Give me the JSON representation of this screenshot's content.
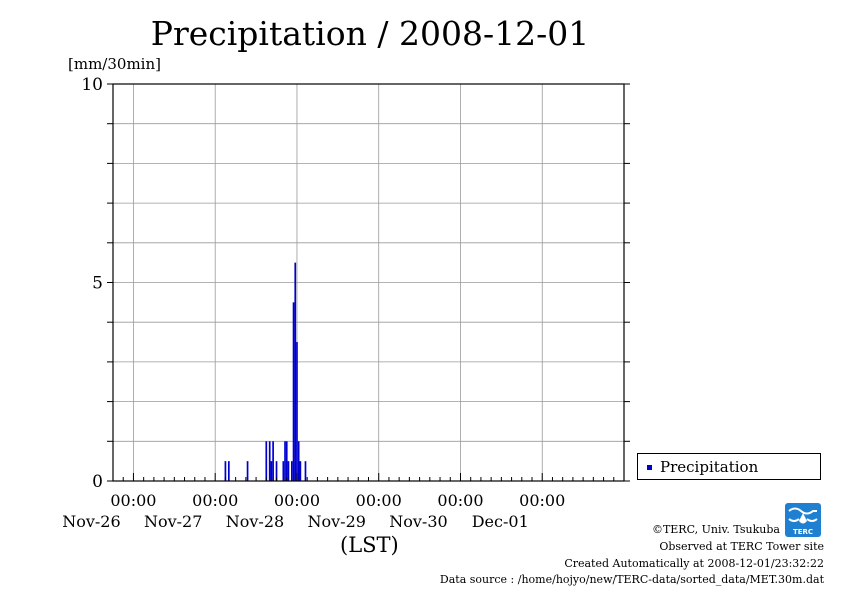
{
  "chart_data": {
    "type": "bar",
    "title": "Precipitation / 2008-12-01",
    "ylabel": "[mm/30min]",
    "xlabel": "(LST)",
    "ylim": [
      0,
      10
    ],
    "yticks": [
      0,
      5,
      10
    ],
    "xlim": [
      "2008-11-25 18:00",
      "2008-12-01 24:00"
    ],
    "xticks": [
      {
        "time": "00:00",
        "date": "Nov-26"
      },
      {
        "time": "00:00",
        "date": "Nov-27"
      },
      {
        "time": "00:00",
        "date": "Nov-28"
      },
      {
        "time": "00:00",
        "date": "Nov-29"
      },
      {
        "time": "00:00",
        "date": "Nov-30"
      },
      {
        "time": "00:00",
        "date": "Dec-01"
      }
    ],
    "grid": true,
    "legend": "bottom-right",
    "series": [
      {
        "name": "Precipitation",
        "color": "#0000cc",
        "points": [
          {
            "x": "2008-11-27 03:00",
            "y": 0.5
          },
          {
            "x": "2008-11-27 04:00",
            "y": 0.5
          },
          {
            "x": "2008-11-27 09:30",
            "y": 0.5
          },
          {
            "x": "2008-11-27 15:00",
            "y": 1.0
          },
          {
            "x": "2008-11-27 16:00",
            "y": 1.0
          },
          {
            "x": "2008-11-27 16:30",
            "y": 0.5
          },
          {
            "x": "2008-11-27 17:00",
            "y": 1.0
          },
          {
            "x": "2008-11-27 18:00",
            "y": 0.5
          },
          {
            "x": "2008-11-27 20:00",
            "y": 0.5
          },
          {
            "x": "2008-11-27 20:30",
            "y": 1.0
          },
          {
            "x": "2008-11-27 21:00",
            "y": 1.0
          },
          {
            "x": "2008-11-27 21:30",
            "y": 0.5
          },
          {
            "x": "2008-11-27 22:30",
            "y": 0.5
          },
          {
            "x": "2008-11-27 23:00",
            "y": 4.5
          },
          {
            "x": "2008-11-27 23:30",
            "y": 5.5
          },
          {
            "x": "2008-11-28 00:00",
            "y": 3.5
          },
          {
            "x": "2008-11-28 00:30",
            "y": 1.0
          },
          {
            "x": "2008-11-28 01:00",
            "y": 0.5
          },
          {
            "x": "2008-11-28 02:30",
            "y": 0.5
          }
        ]
      }
    ]
  },
  "footer": {
    "copyright": "©TERC, Univ. Tsukuba",
    "observed": "Observed at TERC Tower site",
    "created": "Created Automatically at 2008-12-01/23:32:22",
    "source": "Data source : /home/hojyo/new/TERC-data/sorted_data/MET.30m.dat",
    "logo_text": "TERC"
  }
}
